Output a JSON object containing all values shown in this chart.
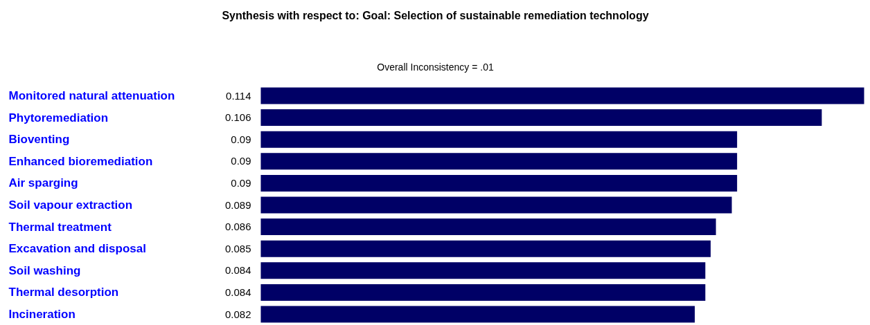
{
  "chart_data": {
    "type": "bar",
    "orientation": "horizontal",
    "title": "Synthesis with respect to: Goal: Selection of sustainable remediation technology",
    "subtitle": "Overall Inconsistency = .01",
    "categories": [
      "Monitored natural attenuation",
      "Phytoremediation",
      "Bioventing",
      "Enhanced bioremediation",
      "Air sparging",
      "Soil vapour extraction",
      "Thermal treatment",
      "Excavation and disposal",
      "Soil washing",
      "Thermal desorption",
      "Incineration"
    ],
    "values": [
      0.114,
      0.106,
      0.09,
      0.09,
      0.09,
      0.089,
      0.086,
      0.085,
      0.084,
      0.084,
      0.082
    ],
    "color": "#000066",
    "data_labels": true
  }
}
